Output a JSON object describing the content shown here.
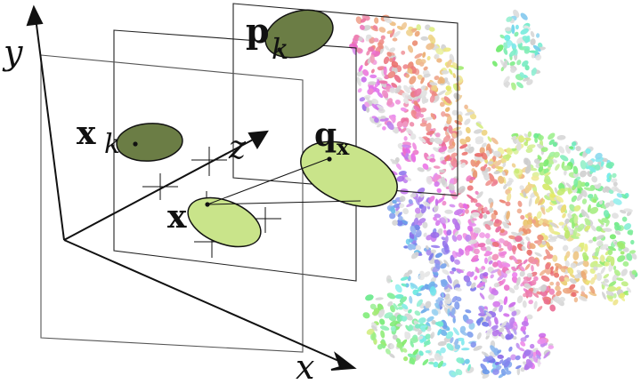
{
  "labels": {
    "axis_x": "x",
    "axis_y": "y",
    "axis_z": "z",
    "point_xk_main": "x",
    "point_xk_sub": "k",
    "point_pk_main": "p",
    "point_pk_sub": "k",
    "point_qx_main": "q",
    "point_qx_sub": "x",
    "point_x": "x"
  },
  "colors": {
    "dark_ellipse": "#6b7d45",
    "light_ellipse": "#c9e48a",
    "line": "#111111",
    "plane": "#222222"
  },
  "icons": {
    "model": "bunny-point-cloud-splats"
  }
}
